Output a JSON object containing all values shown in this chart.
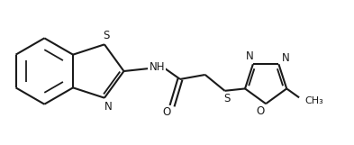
{
  "bg_color": "#ffffff",
  "line_color": "#1a1a1a",
  "line_width": 1.5,
  "font_size": 8.5,
  "figsize": [
    3.93,
    1.61
  ],
  "dpi": 100,
  "xlim": [
    0,
    3.93
  ],
  "ylim": [
    0,
    1.61
  ]
}
